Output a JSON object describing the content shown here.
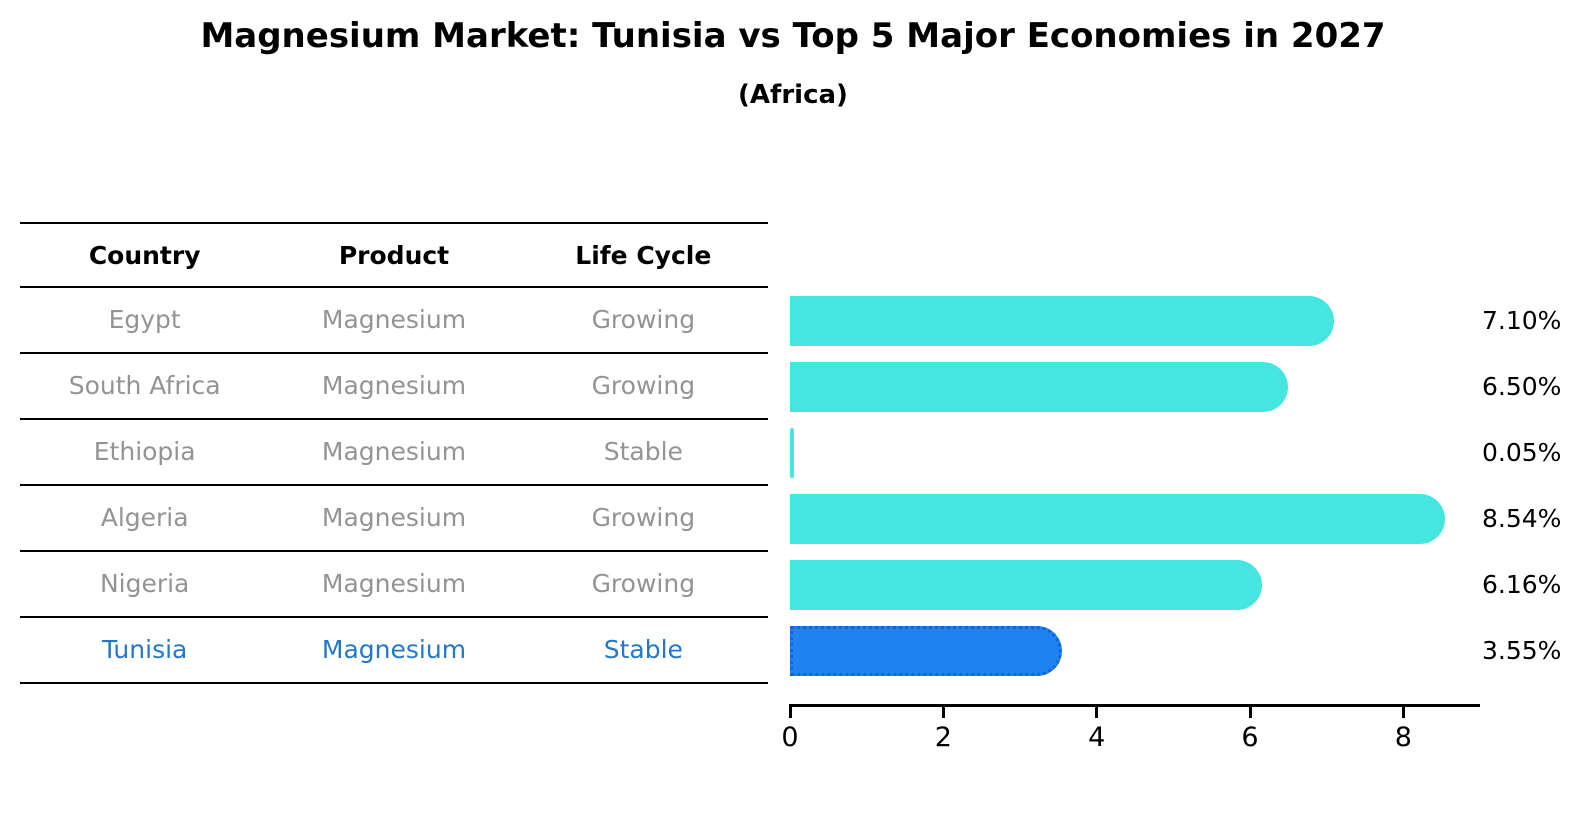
{
  "title": "Magnesium Market: Tunisia vs Top 5 Major Economies in 2027",
  "subtitle": "(Africa)",
  "table": {
    "headers": [
      "Country",
      "Product",
      "Life Cycle"
    ],
    "rows": [
      {
        "country": "Egypt",
        "product": "Magnesium",
        "life_cycle": "Growing",
        "highlight": false
      },
      {
        "country": "South Africa",
        "product": "Magnesium",
        "life_cycle": "Growing",
        "highlight": false
      },
      {
        "country": "Ethiopia",
        "product": "Magnesium",
        "life_cycle": "Stable",
        "highlight": false
      },
      {
        "country": "Algeria",
        "product": "Magnesium",
        "life_cycle": "Growing",
        "highlight": false
      },
      {
        "country": "Nigeria",
        "product": "Magnesium",
        "life_cycle": "Growing",
        "highlight": false
      },
      {
        "country": "Tunisia",
        "product": "Magnesium",
        "life_cycle": "Stable",
        "highlight": true
      }
    ]
  },
  "chart_data": {
    "type": "bar",
    "orientation": "horizontal",
    "title": "Magnesium Market: Tunisia vs Top 5 Major Economies in 2027",
    "subtitle": "(Africa)",
    "categories": [
      "Egypt",
      "South Africa",
      "Ethiopia",
      "Algeria",
      "Nigeria",
      "Tunisia"
    ],
    "values": [
      7.1,
      6.5,
      0.05,
      8.54,
      6.16,
      3.55
    ],
    "value_labels": [
      "7.10%",
      "6.50%",
      "0.05%",
      "8.54%",
      "6.16%",
      "3.55%"
    ],
    "unit": "percent",
    "highlight_index": 5,
    "xlim": [
      0,
      9
    ],
    "x_ticks": [
      0,
      2,
      4,
      6,
      8
    ],
    "grid": false,
    "legend": false,
    "colors": {
      "default_bar": "#45e6e0",
      "highlight_bar": "#1e82f0",
      "highlight_border": "#1263d4",
      "highlight_text": "#2478c8",
      "table_text": "#949494",
      "axis": "#000000"
    }
  }
}
